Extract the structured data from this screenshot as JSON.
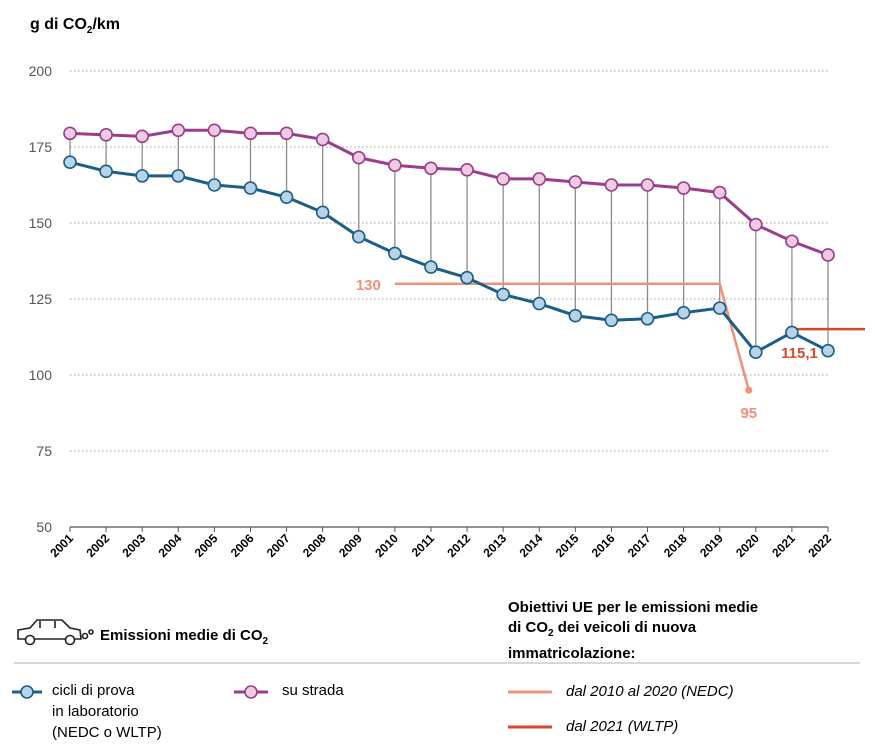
{
  "chart_data": {
    "type": "line",
    "ylabel_prefix": "g di CO",
    "ylabel_sub": "2",
    "ylabel_suffix": "/km",
    "ylim": [
      50,
      200
    ],
    "yticks": [
      50,
      75,
      100,
      125,
      150,
      175,
      200
    ],
    "categories": [
      "2001",
      "2002",
      "2003",
      "2004",
      "2005",
      "2006",
      "2007",
      "2008",
      "2009",
      "2010",
      "2011",
      "2012",
      "2013",
      "2014",
      "2015",
      "2016",
      "2017",
      "2018",
      "2019",
      "2020",
      "2021",
      "2022"
    ],
    "series": [
      {
        "name": "cicli di prova in laboratorio (NEDC o WLTP)",
        "color": "#1b5e8a",
        "marker_fill": "#b9d3e6",
        "values": [
          170,
          167,
          165.5,
          165.5,
          162.5,
          161.5,
          158.5,
          153.5,
          145.5,
          140,
          135.5,
          132,
          126.5,
          123.5,
          119.5,
          118,
          118.5,
          120.5,
          122,
          107.5,
          114,
          108
        ]
      },
      {
        "name": "su strada",
        "color": "#9c3d8c",
        "marker_fill": "#eccbe3",
        "values": [
          179.5,
          179,
          178.5,
          180.5,
          180.5,
          179.5,
          179.5,
          177.5,
          171.5,
          169,
          168,
          167.5,
          164.5,
          164.5,
          163.5,
          162.5,
          162.5,
          161.5,
          160,
          149.5,
          144,
          139.5
        ]
      }
    ],
    "targets": [
      {
        "name": "dal 2010 al 2020 (NEDC)",
        "color": "#f0907a",
        "value": 130,
        "from": "2010",
        "to": "2019",
        "label": "130",
        "drop_value": 95,
        "drop_to": "2020",
        "drop_label": "95"
      },
      {
        "name": "dal 2021 (WLTP)",
        "color": "#d9472b",
        "value": 115.1,
        "from": "2021",
        "label": "115,1"
      }
    ],
    "grid": true
  },
  "legend": {
    "emissions_title_prefix": "Emissioni medie di CO",
    "emissions_title_sub": "2",
    "lab_line1": "cicli di prova",
    "lab_line2": "in laboratorio",
    "lab_line3": "(NEDC o WLTP)",
    "road": "su strada",
    "targets_title_line1": "Obiettivi UE per le emissioni medie",
    "targets_title_line2_prefix": "di CO",
    "targets_title_line2_sub": "2",
    "targets_title_line2_suffix": " dei veicoli di nuova",
    "targets_title_line3": "immatricolazione:",
    "target_nedc": "dal 2010 al 2020 (NEDC)",
    "target_wltp": "dal 2021 (WLTP)",
    "car_icon": "car-icon"
  }
}
